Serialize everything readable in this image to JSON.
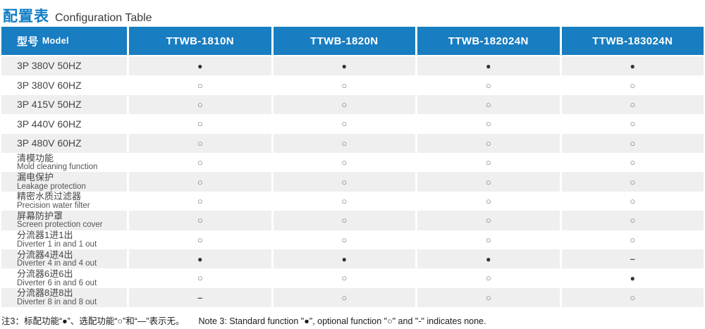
{
  "page": {
    "title_cn": "配置表",
    "title_en": "Configuration Table"
  },
  "table": {
    "model_header_cn": "型号",
    "model_header_en": "Model",
    "columns": [
      "TTWB-1810N",
      "TTWB-1820N",
      "TTWB-182024N",
      "TTWB-183024N"
    ],
    "legend": {
      "standard": "●",
      "optional": "○",
      "none": "–"
    },
    "rows": [
      {
        "label_cn": "3P 380V 50HZ",
        "label_en": "",
        "values": [
          "●",
          "●",
          "●",
          "●"
        ]
      },
      {
        "label_cn": "3P 380V 60HZ",
        "label_en": "",
        "values": [
          "○",
          "○",
          "○",
          "○"
        ]
      },
      {
        "label_cn": "3P 415V 50HZ",
        "label_en": "",
        "values": [
          "○",
          "○",
          "○",
          "○"
        ]
      },
      {
        "label_cn": "3P 440V 60HZ",
        "label_en": "",
        "values": [
          "○",
          "○",
          "○",
          "○"
        ]
      },
      {
        "label_cn": "3P 480V 60HZ",
        "label_en": "",
        "values": [
          "○",
          "○",
          "○",
          "○"
        ]
      },
      {
        "label_cn": "清模功能",
        "label_en": "Mold cleaning function",
        "values": [
          "○",
          "○",
          "○",
          "○"
        ]
      },
      {
        "label_cn": "漏电保护",
        "label_en": "Leakage protection",
        "values": [
          "○",
          "○",
          "○",
          "○"
        ]
      },
      {
        "label_cn": "精密水质过滤器",
        "label_en": "Precision water filter",
        "values": [
          "○",
          "○",
          "○",
          "○"
        ]
      },
      {
        "label_cn": "屏幕防护罩",
        "label_en": "Screen protection cover",
        "values": [
          "○",
          "○",
          "○",
          "○"
        ]
      },
      {
        "label_cn": "分流器1进1出",
        "label_en": "Diverter 1 in and 1 out",
        "values": [
          "○",
          "○",
          "○",
          "○"
        ]
      },
      {
        "label_cn": "分流器4进4出",
        "label_en": "Diverter 4 in and 4 out",
        "values": [
          "●",
          "●",
          "●",
          "–"
        ]
      },
      {
        "label_cn": "分流器6进6出",
        "label_en": "Diverter 6 in and 6 out",
        "values": [
          "○",
          "○",
          "○",
          "●"
        ]
      },
      {
        "label_cn": "分流器8进8出",
        "label_en": "Diverter 8 in and 8 out",
        "values": [
          "–",
          "○",
          "○",
          "○"
        ]
      }
    ]
  },
  "footer": {
    "note_cn": "注3：标配功能“●”、选配功能“○”和“—”表示无。",
    "note_en": "Note 3: Standard function \"●\", optional function \"○\" and \"-\" indicates none."
  },
  "colors": {
    "accent_blue": "#187dc1",
    "title_blue": "#0f7dc5",
    "row_stripe_gray": "#efefef",
    "text_dark": "#454545"
  }
}
